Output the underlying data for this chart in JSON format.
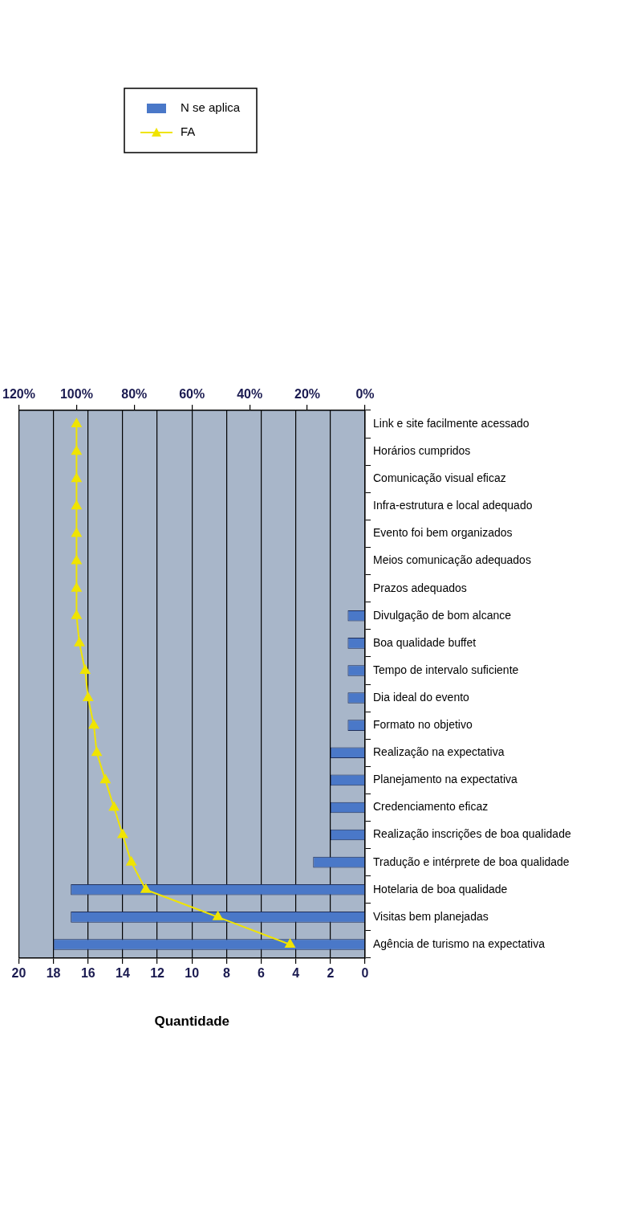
{
  "chart_data": {
    "type": "bar",
    "orientation": "horizontal",
    "xlabel": "Quantidade",
    "categories": [
      "Link e site facilmente acessado",
      "Horários cumpridos",
      "Comunicação visual eficaz",
      "Infra-estrutura e local adequado",
      "Evento foi bem organizados",
      "Meios comunicação adequados",
      "Prazos adequados",
      "Divulgação de bom alcance",
      "Boa qualidade buffet",
      "Tempo de intervalo suficiente",
      "Dia ideal do evento",
      "Formato no objetivo",
      "Realização na expectativa",
      "Planejamento na expectativa",
      "Credenciamento eficaz",
      "Realização inscrições de boa qualidade",
      "Tradução e intérprete de boa qualidade",
      "Hotelaria de boa qualidade",
      "Visitas bem planejadas",
      "Agência de turismo na expectativa"
    ],
    "series": [
      {
        "name": "N se aplica",
        "type": "bar",
        "color": "#4a78c8",
        "values": [
          0,
          0,
          0,
          0,
          0,
          0,
          0,
          1,
          1,
          1,
          1,
          1,
          2,
          2,
          2,
          2,
          3,
          17,
          17,
          18
        ]
      },
      {
        "name": "FA",
        "type": "line",
        "axis": "x2",
        "color": "#f0e400",
        "values": [
          100,
          100,
          100,
          100,
          100,
          100,
          100,
          100,
          99,
          97,
          96,
          94,
          93,
          90,
          87,
          84,
          81,
          76,
          51,
          26
        ]
      }
    ],
    "xlim": [
      20,
      0
    ],
    "xticks": [
      20,
      18,
      16,
      14,
      12,
      10,
      8,
      6,
      4,
      2,
      0
    ],
    "x2lim": [
      120,
      0
    ],
    "x2ticks": [
      {
        "value": 120,
        "label": "120%"
      },
      {
        "value": 100,
        "label": "100%"
      },
      {
        "value": 80,
        "label": "80%"
      },
      {
        "value": 60,
        "label": "60%"
      },
      {
        "value": 40,
        "label": "40%"
      },
      {
        "value": 20,
        "label": "20%"
      },
      {
        "value": 0,
        "label": "0%"
      }
    ],
    "grid": "x",
    "legend": "top",
    "marker": "triangle"
  }
}
